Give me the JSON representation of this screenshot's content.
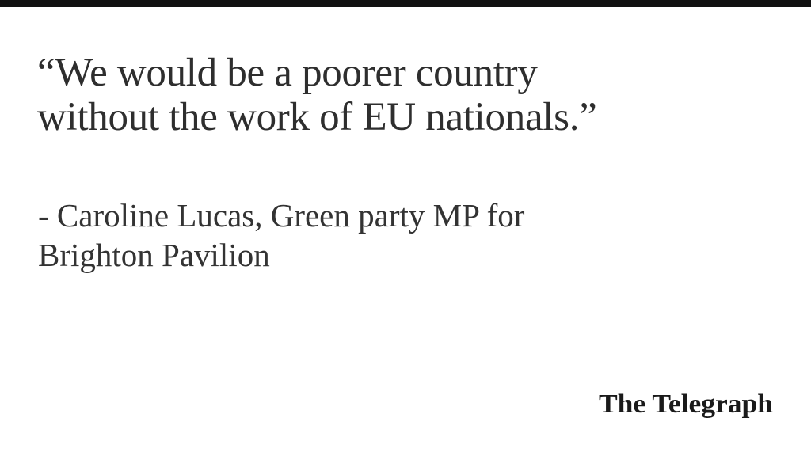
{
  "quote": {
    "line1": "“We would be a poorer country",
    "line2": "without the work of EU nationals.”"
  },
  "attribution": {
    "line1": "- Caroline Lucas, Green party MP for",
    "line2": "Brighton Pavilion"
  },
  "brand": {
    "logo_text": "The Telegraph"
  },
  "colors": {
    "top_bar": "#111111",
    "text": "#2e2e2e",
    "logo": "#1a1a1a"
  }
}
